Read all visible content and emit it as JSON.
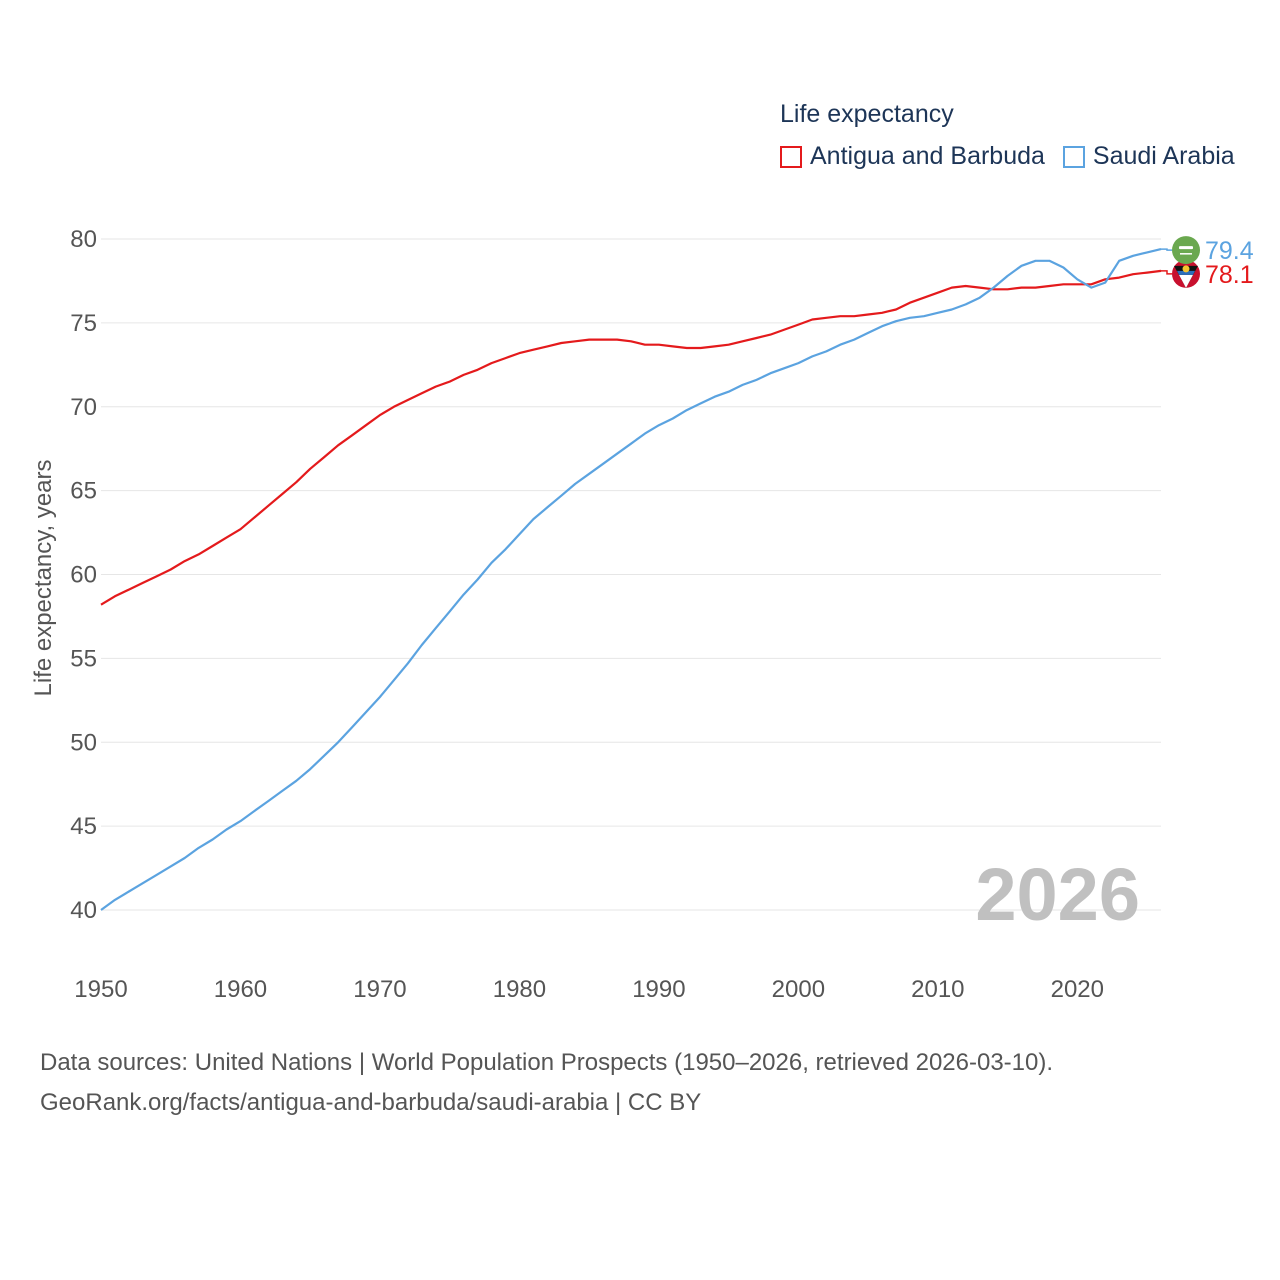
{
  "chart_data": {
    "type": "line",
    "legend_title": "Life expectancy",
    "ylabel": "Life expectancy, years",
    "xlabel": "",
    "xlim": [
      1950,
      2026
    ],
    "ylim": [
      40,
      80
    ],
    "x_ticks": [
      1950,
      1960,
      1970,
      1980,
      1990,
      2000,
      2010,
      2020
    ],
    "y_ticks": [
      40,
      45,
      50,
      55,
      60,
      65,
      70,
      75,
      80
    ],
    "grid": true,
    "legend_position": "top-right",
    "year_watermark": "2026",
    "x": [
      1950,
      1951,
      1952,
      1953,
      1954,
      1955,
      1956,
      1957,
      1958,
      1959,
      1960,
      1961,
      1962,
      1963,
      1964,
      1965,
      1966,
      1967,
      1968,
      1969,
      1970,
      1971,
      1972,
      1973,
      1974,
      1975,
      1976,
      1977,
      1978,
      1979,
      1980,
      1981,
      1982,
      1983,
      1984,
      1985,
      1986,
      1987,
      1988,
      1989,
      1990,
      1991,
      1992,
      1993,
      1994,
      1995,
      1996,
      1997,
      1998,
      1999,
      2000,
      2001,
      2002,
      2003,
      2004,
      2005,
      2006,
      2007,
      2008,
      2009,
      2010,
      2011,
      2012,
      2013,
      2014,
      2015,
      2016,
      2017,
      2018,
      2019,
      2020,
      2021,
      2022,
      2023,
      2024,
      2025,
      2026
    ],
    "series": [
      {
        "name": "Antigua and Barbuda",
        "color": "#e41a1c",
        "end_label": "78.1",
        "flag": "antigua-flag",
        "values": [
          58.2,
          58.7,
          59.1,
          59.5,
          59.9,
          60.3,
          60.8,
          61.2,
          61.7,
          62.2,
          62.7,
          63.4,
          64.1,
          64.8,
          65.5,
          66.3,
          67.0,
          67.7,
          68.3,
          68.9,
          69.5,
          70.0,
          70.4,
          70.8,
          71.2,
          71.5,
          71.9,
          72.2,
          72.6,
          72.9,
          73.2,
          73.4,
          73.6,
          73.8,
          73.9,
          74.0,
          74.0,
          74.0,
          73.9,
          73.7,
          73.7,
          73.6,
          73.5,
          73.5,
          73.6,
          73.7,
          73.9,
          74.1,
          74.3,
          74.6,
          74.9,
          75.2,
          75.3,
          75.4,
          75.4,
          75.5,
          75.6,
          75.8,
          76.2,
          76.5,
          76.8,
          77.1,
          77.2,
          77.1,
          77.0,
          77.0,
          77.1,
          77.1,
          77.2,
          77.3,
          77.3,
          77.3,
          77.6,
          77.7,
          77.9,
          78.0,
          78.1
        ]
      },
      {
        "name": "Saudi Arabia",
        "color": "#5ba3e0",
        "end_label": "79.4",
        "flag": "saudi-flag",
        "values": [
          40.0,
          40.6,
          41.1,
          41.6,
          42.1,
          42.6,
          43.1,
          43.7,
          44.2,
          44.8,
          45.3,
          45.9,
          46.5,
          47.1,
          47.7,
          48.4,
          49.2,
          50.0,
          50.9,
          51.8,
          52.7,
          53.7,
          54.7,
          55.8,
          56.8,
          57.8,
          58.8,
          59.7,
          60.7,
          61.5,
          62.4,
          63.3,
          64.0,
          64.7,
          65.4,
          66.0,
          66.6,
          67.2,
          67.8,
          68.4,
          68.9,
          69.3,
          69.8,
          70.2,
          70.6,
          70.9,
          71.3,
          71.6,
          72.0,
          72.3,
          72.6,
          73.0,
          73.3,
          73.7,
          74.0,
          74.4,
          74.8,
          75.1,
          75.3,
          75.4,
          75.6,
          75.8,
          76.1,
          76.5,
          77.1,
          77.8,
          78.4,
          78.7,
          78.7,
          78.3,
          77.6,
          77.1,
          77.4,
          78.7,
          79.0,
          79.2,
          79.4
        ]
      }
    ]
  },
  "sources": {
    "line1": "Data sources: United Nations | World Population Prospects (1950–2026, retrieved 2026-03-10).",
    "line2": "GeoRank.org/facts/antigua-and-barbuda/saudi-arabia | CC BY"
  }
}
